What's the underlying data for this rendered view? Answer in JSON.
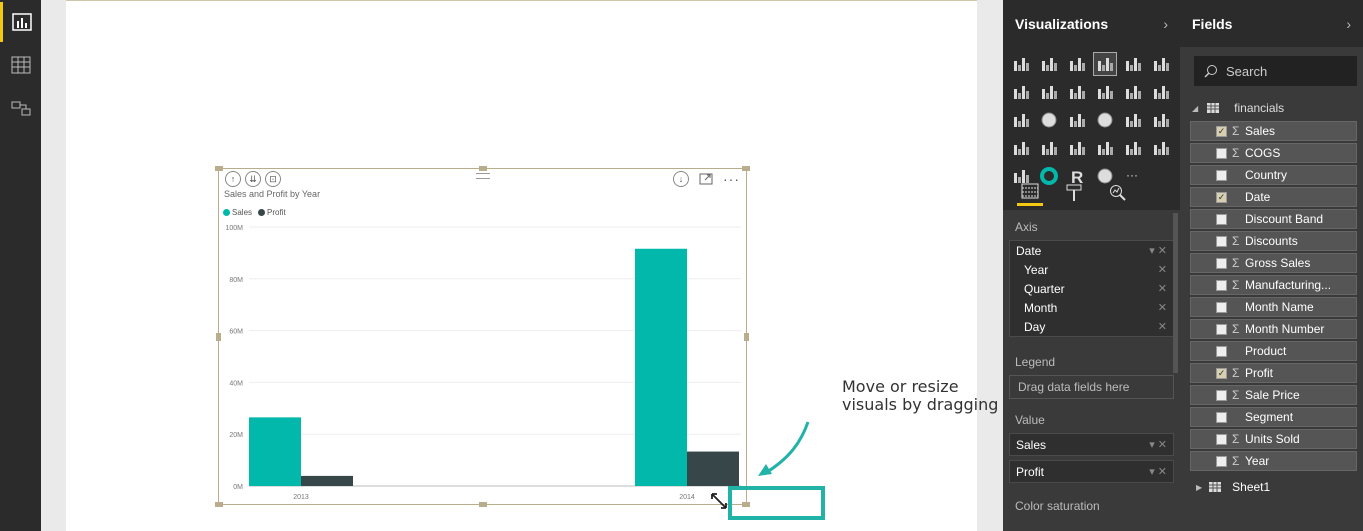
{
  "nav": {
    "items": [
      {
        "name": "report-view",
        "active": true
      },
      {
        "name": "data-view",
        "active": false
      },
      {
        "name": "relationships-view",
        "active": false
      }
    ]
  },
  "visual": {
    "title": "Sales and Profit by Year",
    "legend": [
      {
        "label": "Sales",
        "color": "#01b8aa"
      },
      {
        "label": "Profit",
        "color": "#374649"
      }
    ]
  },
  "chart_data": {
    "type": "bar",
    "title": "Sales and Profit by Year",
    "categories": [
      "2013",
      "2014"
    ],
    "series": [
      {
        "name": "Sales",
        "values": [
          26.5,
          91.6
        ],
        "color": "#01b8aa"
      },
      {
        "name": "Profit",
        "values": [
          3.9,
          13.3
        ],
        "color": "#374649"
      }
    ],
    "yticks": [
      "0M",
      "20M",
      "40M",
      "60M",
      "80M",
      "100M"
    ],
    "ylim": [
      0,
      100
    ],
    "grid": true,
    "legend_position": "top-left"
  },
  "annotation": {
    "text_line1": "Move or resize",
    "text_line2": "visuals by dragging"
  },
  "visualizations": {
    "title": "Visualizations",
    "wells": {
      "axis_label": "Axis",
      "axis_field": "Date",
      "axis_sub": [
        "Year",
        "Quarter",
        "Month",
        "Day"
      ],
      "legend_label": "Legend",
      "legend_placeholder": "Drag data fields here",
      "value_label": "Value",
      "values": [
        "Sales",
        "Profit"
      ],
      "color_sat_label": "Color saturation"
    }
  },
  "fields": {
    "title": "Fields",
    "search_placeholder": "Search",
    "table_name": "financials",
    "items": [
      {
        "label": "Sales",
        "sigma": true,
        "checked": true
      },
      {
        "label": "COGS",
        "sigma": true,
        "checked": false
      },
      {
        "label": "Country",
        "sigma": false,
        "checked": false
      },
      {
        "label": "Date",
        "sigma": false,
        "checked": true
      },
      {
        "label": "Discount Band",
        "sigma": false,
        "checked": false
      },
      {
        "label": "Discounts",
        "sigma": true,
        "checked": false
      },
      {
        "label": "Gross Sales",
        "sigma": true,
        "checked": false
      },
      {
        "label": "Manufacturing...",
        "sigma": true,
        "checked": false
      },
      {
        "label": "Month Name",
        "sigma": false,
        "checked": false
      },
      {
        "label": "Month Number",
        "sigma": true,
        "checked": false
      },
      {
        "label": "Product",
        "sigma": false,
        "checked": false
      },
      {
        "label": "Profit",
        "sigma": true,
        "checked": true
      },
      {
        "label": "Sale Price",
        "sigma": true,
        "checked": false
      },
      {
        "label": "Segment",
        "sigma": false,
        "checked": false
      },
      {
        "label": "Units Sold",
        "sigma": true,
        "checked": false
      },
      {
        "label": "Year",
        "sigma": true,
        "checked": false
      }
    ],
    "sheet_name": "Sheet1"
  }
}
